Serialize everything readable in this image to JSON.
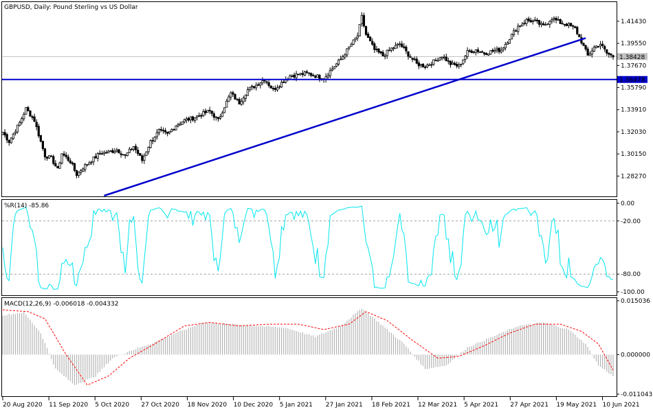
{
  "header": {
    "symbol_title": "GBPUSD, Daily:  Pound Sterling vs US Dollar",
    "wpr_title": "%R(14) -85.86",
    "macd_title": "MACD(12,26,9) -0.006018 -0.004332"
  },
  "colors": {
    "background": "#ffffff",
    "candle": "#000000",
    "trendline": "#0000cc",
    "wpr_line": "#00e5ee",
    "macd_hist": "#b4b4b4",
    "macd_signal": "#ff0000",
    "current_price_tag": "#c0c0c0",
    "level_tag": "#0000cc",
    "level_text": "#ffffff"
  },
  "chart_data": [
    {
      "type": "candlestick",
      "title": "GBPUSD, Daily:  Pound Sterling vs US Dollar",
      "ylim": [
        1.266,
        1.43
      ],
      "y_ticks": [
        "1.41430",
        "1.39550",
        "1.37670",
        "1.35790",
        "1.33910",
        "1.32030",
        "1.30150",
        "1.28270"
      ],
      "x_ticks": [
        "20 Aug 2020",
        "11 Sep 2020",
        "5 Oct 2020",
        "27 Oct 2020",
        "18 Nov 2020",
        "10 Dec 2020",
        "5 Jan 2021",
        "27 Jan 2021",
        "18 Feb 2021",
        "12 Mar 2021",
        "5 Apr 2021",
        "27 Apr 2021",
        "19 May 2021",
        "10 Jun 2021"
      ],
      "current_price": "1.38428",
      "horizontal_level": "1.36478",
      "trendline": {
        "from": [
          "5 Oct 2020",
          1.266
        ],
        "through": [
          "10 Jun 2021",
          1.4
        ]
      },
      "anchors": [
        [
          0,
          1.32
        ],
        [
          3,
          1.312
        ],
        [
          8,
          1.328
        ],
        [
          11,
          1.34
        ],
        [
          15,
          1.33
        ],
        [
          20,
          1.3
        ],
        [
          23,
          1.298
        ],
        [
          26,
          1.288
        ],
        [
          28,
          1.302
        ],
        [
          32,
          1.295
        ],
        [
          35,
          1.284
        ],
        [
          38,
          1.29
        ],
        [
          42,
          1.296
        ],
        [
          46,
          1.302
        ],
        [
          50,
          1.303
        ],
        [
          54,
          1.305
        ],
        [
          58,
          1.3
        ],
        [
          62,
          1.308
        ],
        [
          66,
          1.296
        ],
        [
          70,
          1.312
        ],
        [
          74,
          1.321
        ],
        [
          78,
          1.318
        ],
        [
          82,
          1.326
        ],
        [
          86,
          1.33
        ],
        [
          90,
          1.332
        ],
        [
          94,
          1.335
        ],
        [
          98,
          1.338
        ],
        [
          102,
          1.33
        ],
        [
          105,
          1.342
        ],
        [
          108,
          1.353
        ],
        [
          112,
          1.345
        ],
        [
          116,
          1.356
        ],
        [
          120,
          1.36
        ],
        [
          124,
          1.365
        ],
        [
          128,
          1.356
        ],
        [
          132,
          1.362
        ],
        [
          136,
          1.368
        ],
        [
          140,
          1.369
        ],
        [
          144,
          1.37
        ],
        [
          148,
          1.368
        ],
        [
          152,
          1.366
        ],
        [
          156,
          1.374
        ],
        [
          160,
          1.382
        ],
        [
          164,
          1.392
        ],
        [
          168,
          1.402
        ],
        [
          170,
          1.418
        ],
        [
          172,
          1.403
        ],
        [
          176,
          1.39
        ],
        [
          180,
          1.385
        ],
        [
          184,
          1.391
        ],
        [
          188,
          1.395
        ],
        [
          192,
          1.386
        ],
        [
          196,
          1.378
        ],
        [
          200,
          1.376
        ],
        [
          204,
          1.38
        ],
        [
          208,
          1.385
        ],
        [
          212,
          1.378
        ],
        [
          216,
          1.376
        ],
        [
          220,
          1.388
        ],
        [
          224,
          1.39
        ],
        [
          228,
          1.387
        ],
        [
          232,
          1.389
        ],
        [
          236,
          1.39
        ],
        [
          240,
          1.4
        ],
        [
          244,
          1.41
        ],
        [
          248,
          1.415
        ],
        [
          252,
          1.414
        ],
        [
          256,
          1.41
        ],
        [
          260,
          1.417
        ],
        [
          264,
          1.413
        ],
        [
          268,
          1.411
        ],
        [
          271,
          1.408
        ],
        [
          274,
          1.397
        ],
        [
          277,
          1.385
        ],
        [
          280,
          1.392
        ],
        [
          283,
          1.395
        ],
        [
          286,
          1.387
        ],
        [
          289,
          1.3843
        ]
      ]
    },
    {
      "type": "line",
      "title": "%R(14) -85.86",
      "ylim": [
        -100,
        0
      ],
      "y_ticks": [
        "0.00",
        "-20.00",
        "-80.00",
        "-100.00"
      ],
      "levels": [
        -20,
        -80
      ],
      "last_value": -85.86
    },
    {
      "type": "bar",
      "title": "MACD(12,26,9) -0.006018 -0.004332",
      "ylim": [
        -0.011043,
        0.015036
      ],
      "y_ticks": [
        "0.015036",
        "0.000000",
        "-0.011043"
      ],
      "macd_last": -0.006018,
      "signal_last": -0.004332,
      "macd_anchors": [
        [
          0,
          0.011
        ],
        [
          10,
          0.0118
        ],
        [
          18,
          0.006
        ],
        [
          25,
          -0.004
        ],
        [
          34,
          -0.0085
        ],
        [
          44,
          -0.006
        ],
        [
          52,
          -0.001
        ],
        [
          60,
          0.001
        ],
        [
          70,
          0.003
        ],
        [
          82,
          0.006
        ],
        [
          95,
          0.009
        ],
        [
          108,
          0.0085
        ],
        [
          120,
          0.008
        ],
        [
          134,
          0.0075
        ],
        [
          148,
          0.005
        ],
        [
          160,
          0.008
        ],
        [
          170,
          0.013
        ],
        [
          180,
          0.008
        ],
        [
          190,
          0.003
        ],
        [
          200,
          -0.004
        ],
        [
          210,
          -0.003
        ],
        [
          220,
          0.002
        ],
        [
          232,
          0.005
        ],
        [
          244,
          0.008
        ],
        [
          256,
          0.009
        ],
        [
          268,
          0.007
        ],
        [
          276,
          0.003
        ],
        [
          282,
          -0.003
        ],
        [
          289,
          -0.006
        ]
      ],
      "signal_anchors": [
        [
          0,
          0.0125
        ],
        [
          12,
          0.012
        ],
        [
          20,
          0.01
        ],
        [
          30,
          0.0
        ],
        [
          40,
          -0.0085
        ],
        [
          50,
          -0.006
        ],
        [
          60,
          -0.001
        ],
        [
          72,
          0.003
        ],
        [
          86,
          0.008
        ],
        [
          98,
          0.009
        ],
        [
          112,
          0.008
        ],
        [
          126,
          0.0085
        ],
        [
          140,
          0.0085
        ],
        [
          152,
          0.007
        ],
        [
          164,
          0.0085
        ],
        [
          172,
          0.012
        ],
        [
          182,
          0.0095
        ],
        [
          194,
          0.004
        ],
        [
          206,
          -0.001
        ],
        [
          216,
          -0.0005
        ],
        [
          228,
          0.0025
        ],
        [
          240,
          0.006
        ],
        [
          252,
          0.0085
        ],
        [
          264,
          0.0085
        ],
        [
          274,
          0.0065
        ],
        [
          282,
          0.003
        ],
        [
          289,
          -0.0043
        ]
      ]
    }
  ]
}
